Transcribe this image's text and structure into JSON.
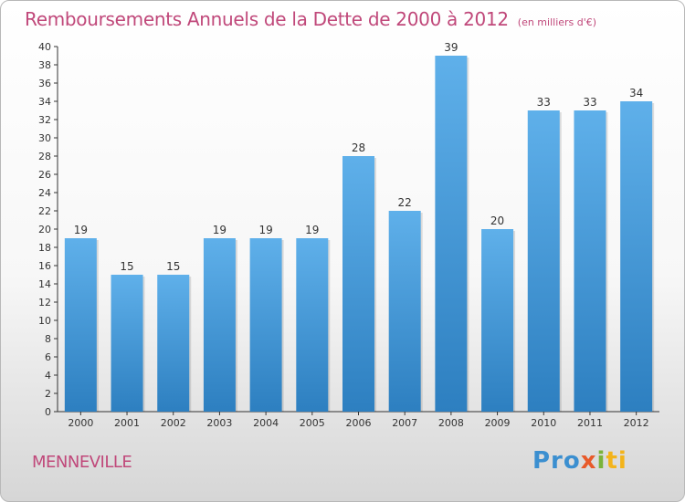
{
  "header": {
    "title": "Remboursements Annuels de la Dette de 2000 à 2012",
    "subtitle": "(en milliers d'€)"
  },
  "footer": {
    "commune": "MENNEVILLE",
    "logo": "Proxiti"
  },
  "colors": {
    "title": "#c0487a",
    "bar_top": "#5fb0ea",
    "bar_bottom": "#2d7fc0"
  },
  "chart_data": {
    "type": "bar",
    "title": "Remboursements Annuels de la Dette de 2000 à 2012",
    "subtitle": "(en milliers d'€)",
    "categories": [
      "2000",
      "2001",
      "2002",
      "2003",
      "2004",
      "2005",
      "2006",
      "2007",
      "2008",
      "2009",
      "2010",
      "2011",
      "2012"
    ],
    "values": [
      19,
      15,
      15,
      19,
      19,
      19,
      28,
      22,
      39,
      20,
      33,
      33,
      34
    ],
    "ylim": [
      0,
      40
    ],
    "ytick_step": 2,
    "grid": false,
    "data_labels": true
  }
}
